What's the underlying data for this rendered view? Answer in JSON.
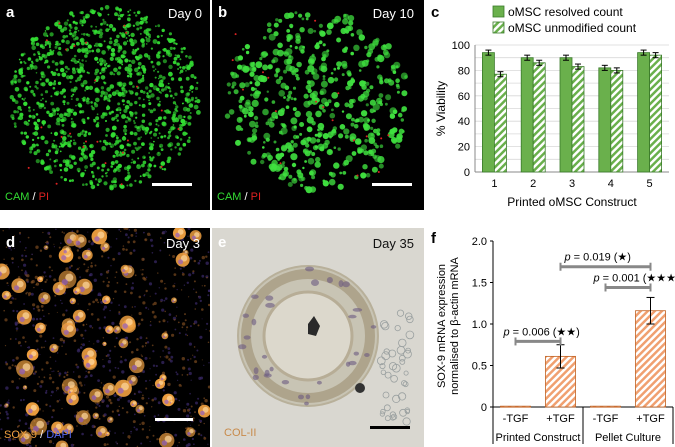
{
  "panels": {
    "a": {
      "letter": "a",
      "day": "Day 0",
      "stain_a": "CAM",
      "stain_sep": " / ",
      "stain_b": "PI",
      "green": "#33dd33",
      "red": "#dd2222"
    },
    "b": {
      "letter": "b",
      "day": "Day 10",
      "stain_a": "CAM",
      "stain_sep": " / ",
      "stain_b": "PI",
      "green": "#33dd33",
      "red": "#dd2222"
    },
    "c": {
      "letter": "c"
    },
    "d": {
      "letter": "d",
      "day": "Day 3",
      "stain_a": "SOX-9",
      "stain_sep": " / ",
      "stain_b": "DAPI",
      "orange": "#f0a040",
      "blue": "#5566ee"
    },
    "e": {
      "letter": "e",
      "day": "Day 35",
      "stain": "COL-II",
      "stain_color": "#c88a4a"
    },
    "f": {
      "letter": "f"
    }
  },
  "chart_data": [
    {
      "type": "bar",
      "panel": "c",
      "categories": [
        "1",
        "2",
        "3",
        "4",
        "5"
      ],
      "series": [
        {
          "name": "oMSC resolved count",
          "values": [
            94,
            90,
            90,
            82,
            94
          ],
          "errors": [
            2,
            2,
            2,
            2,
            2
          ],
          "color": "#6ab04c",
          "pattern": "solid"
        },
        {
          "name": "oMSC unmodified count",
          "values": [
            77,
            86,
            83,
            80,
            92
          ],
          "errors": [
            2,
            2,
            2,
            2,
            2
          ],
          "color": "#6ab04c",
          "pattern": "hatch"
        }
      ],
      "xlabel": "Printed oMSC Construct",
      "ylabel": "% Viability",
      "ylim": [
        0,
        100
      ],
      "yticks": [
        0,
        10,
        20,
        30,
        40,
        50,
        60,
        70,
        80,
        90,
        100
      ],
      "grid": true,
      "legend": "top"
    },
    {
      "type": "bar",
      "panel": "f",
      "categories": [
        "-TGF",
        "+TGF",
        "-TGF",
        "+TGF"
      ],
      "groups": [
        "Printed Construct",
        "Pellet Culture"
      ],
      "values": [
        0.01,
        0.61,
        0.01,
        1.16
      ],
      "errors": [
        0,
        0.14,
        0,
        0.16
      ],
      "color": "#f0a070",
      "pattern": "hatch",
      "ylabel_line1": "SOX-9 mRNA expression",
      "ylabel_line2": "normalised to β-actin mRNA",
      "ylim": [
        0,
        2.0
      ],
      "yticks": [
        "0",
        "0.5",
        "1.0",
        "1.5",
        "2.0"
      ],
      "annotations": [
        {
          "p": "p",
          "text": " = 0.006 (★★)"
        },
        {
          "p": "p",
          "text": " = 0.001 (★★★)"
        },
        {
          "p": "p",
          "text": " = 0.019 (★)"
        }
      ]
    }
  ]
}
